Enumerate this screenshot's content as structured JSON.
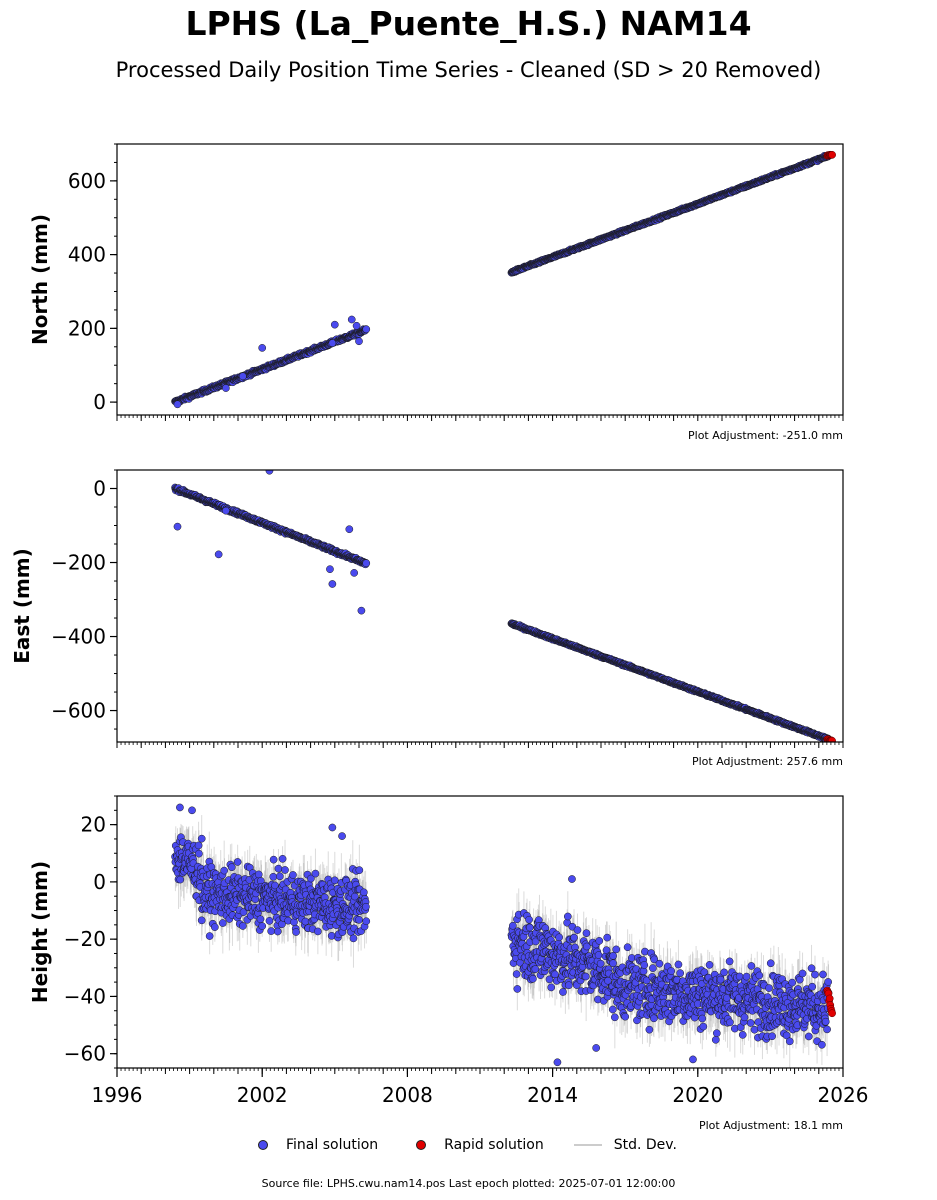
{
  "title": "LPHS (La_Puente_H.S.) NAM14",
  "subtitle": "Processed Daily Position Time Series - Cleaned (SD > 20 Removed)",
  "legend": {
    "final": "Final solution",
    "rapid": "Rapid solution",
    "std": "Std. Dev."
  },
  "footer": "Source file: LPHS.cwu.nam14.pos  Last epoch plotted: 2025-07-01 12:00:00",
  "colors": {
    "final": "#4a4aee",
    "rapid": "#e00000",
    "std": "#999999",
    "edge": "#1a1a1a"
  },
  "chart_data": [
    {
      "type": "scatter",
      "ylabel": "North (mm)",
      "adjustment": "Plot Adjustment: -251.0 mm",
      "xlim": [
        1996,
        2026
      ],
      "ylim": [
        -35,
        700
      ],
      "yticks": [
        0,
        200,
        400,
        600
      ],
      "xtick_labels_visible": false,
      "segments": [
        {
          "x0": 1998.4,
          "x1": 2006.3,
          "y0": 0,
          "y1": 196,
          "noise": 3
        },
        {
          "x0": 2012.3,
          "x1": 2025.4,
          "y0": 352,
          "y1": 668,
          "noise": 2
        }
      ],
      "outliers": [
        [
          1998.5,
          -6
        ],
        [
          2000.5,
          38
        ],
        [
          2002.0,
          147
        ],
        [
          2004.9,
          160
        ],
        [
          2005.0,
          210
        ],
        [
          2005.7,
          224
        ],
        [
          2005.9,
          207
        ],
        [
          2006.0,
          165
        ],
        [
          2001.2,
          70
        ]
      ],
      "rapid": {
        "x0": 2025.35,
        "x1": 2025.55,
        "y0": 668,
        "y1": 672
      }
    },
    {
      "type": "scatter",
      "ylabel": "East (mm)",
      "adjustment": "Plot Adjustment: 257.6 mm",
      "xlim": [
        1996,
        2026
      ],
      "ylim": [
        -685,
        50
      ],
      "yticks": [
        -600,
        -400,
        -200,
        0
      ],
      "xtick_labels_visible": false,
      "segments": [
        {
          "x0": 1998.4,
          "x1": 2006.3,
          "y0": 0,
          "y1": -203,
          "noise": 3
        },
        {
          "x0": 2012.3,
          "x1": 2025.4,
          "y0": -365,
          "y1": -678,
          "noise": 2
        }
      ],
      "outliers": [
        [
          1998.5,
          -103
        ],
        [
          2000.2,
          -178
        ],
        [
          2002.3,
          48
        ],
        [
          2004.8,
          -218
        ],
        [
          2004.9,
          -258
        ],
        [
          2005.6,
          -110
        ],
        [
          2005.8,
          -228
        ],
        [
          2006.1,
          -330
        ],
        [
          2000.5,
          -60
        ]
      ],
      "rapid": {
        "x0": 2025.35,
        "x1": 2025.55,
        "y0": -678,
        "y1": -682
      }
    },
    {
      "type": "scatter",
      "ylabel": "Height (mm)",
      "adjustment": "Plot Adjustment: 18.1 mm",
      "xlim": [
        1996,
        2026
      ],
      "ylim": [
        -65,
        30
      ],
      "xticks": [
        1996,
        2002,
        2008,
        2014,
        2020,
        2026
      ],
      "yticks": [
        -60,
        -40,
        -20,
        0,
        20
      ],
      "xtick_labels_visible": true,
      "segments": [
        {
          "x0": 1998.4,
          "x1": 1999.5,
          "y0": 10,
          "y1": 3,
          "noise": 7
        },
        {
          "x0": 1999.5,
          "x1": 2006.3,
          "y0": -4,
          "y1": -9,
          "noise": 7
        },
        {
          "x0": 2012.3,
          "x1": 2016.5,
          "y0": -20,
          "y1": -32,
          "noise": 9
        },
        {
          "x0": 2016.5,
          "x1": 2025.4,
          "y0": -36,
          "y1": -44,
          "noise": 8
        }
      ],
      "outliers": [
        [
          1998.6,
          26
        ],
        [
          1999.1,
          25
        ],
        [
          2004.9,
          19
        ],
        [
          2005.3,
          16
        ],
        [
          2014.8,
          1
        ],
        [
          2014.2,
          -63
        ],
        [
          2015.8,
          -58
        ],
        [
          2019.8,
          -62
        ]
      ],
      "rapid": {
        "x0": 2025.35,
        "x1": 2025.55,
        "y0": -38,
        "y1": -46
      }
    }
  ]
}
